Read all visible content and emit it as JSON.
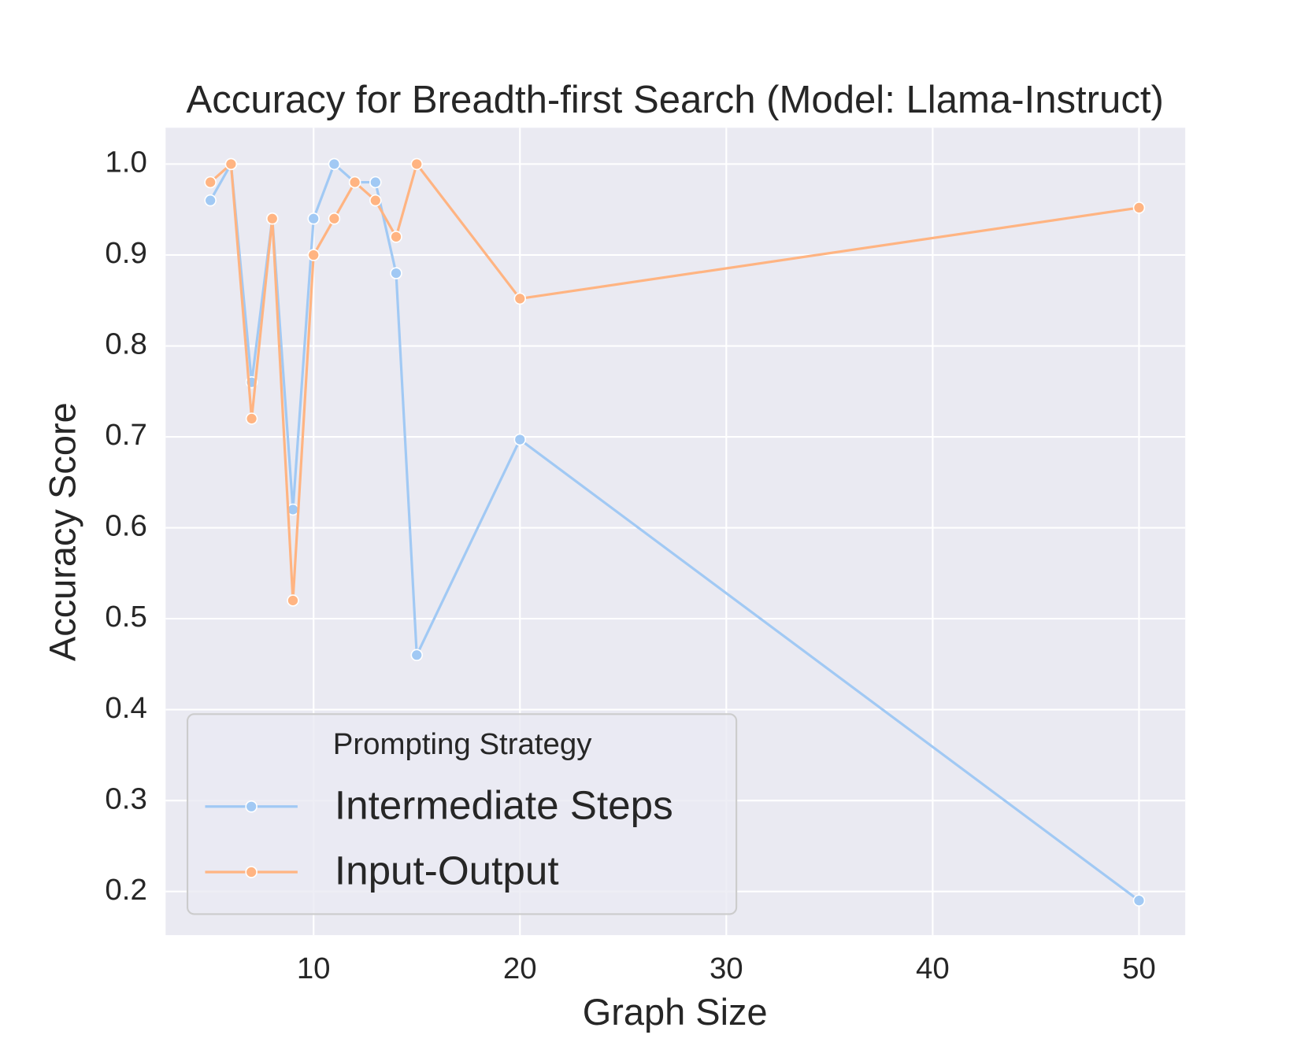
{
  "chart_data": {
    "type": "line",
    "title": "Accuracy for Breadth-first Search (Model: Llama-Instruct)",
    "x_label": "Graph Size",
    "y_label": "Accuracy Score",
    "x": [
      5,
      6,
      7,
      8,
      9,
      10,
      11,
      12,
      13,
      14,
      15,
      20,
      50
    ],
    "series": [
      {
        "name": "Intermediate Steps",
        "color": "#a1c9f4",
        "values": [
          0.96,
          1.0,
          0.76,
          0.94,
          0.62,
          0.94,
          1.0,
          0.98,
          0.98,
          0.88,
          0.46,
          0.697,
          0.19
        ]
      },
      {
        "name": "Input-Output",
        "color": "#ffb482",
        "values": [
          0.98,
          1.0,
          0.72,
          0.94,
          0.52,
          0.9,
          0.94,
          0.98,
          0.96,
          0.92,
          1.0,
          0.852,
          0.952
        ]
      }
    ],
    "legend_title": "Prompting Strategy",
    "legend": "lower left",
    "xlim": [
      2.83,
      52.24
    ],
    "xticks": [
      10,
      20,
      30,
      40,
      50
    ],
    "ylim": [
      0.152,
      1.04
    ],
    "yticks": [
      {
        "value": 0.2,
        "label": "0.2"
      },
      {
        "value": 0.3,
        "label": "0.3"
      },
      {
        "value": 0.4,
        "label": "0.4"
      },
      {
        "value": 0.5,
        "label": "0.5"
      },
      {
        "value": 0.6,
        "label": "0.6"
      },
      {
        "value": 0.7,
        "label": "0.7"
      },
      {
        "value": 0.8,
        "label": "0.8"
      },
      {
        "value": 0.9,
        "label": "0.9"
      },
      {
        "value": 1.0,
        "label": "1.0"
      }
    ],
    "grid": true
  }
}
